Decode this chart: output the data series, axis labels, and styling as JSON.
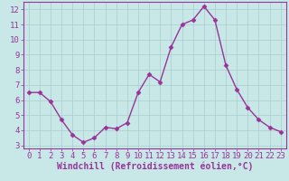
{
  "x": [
    0,
    1,
    2,
    3,
    4,
    5,
    6,
    7,
    8,
    9,
    10,
    11,
    12,
    13,
    14,
    15,
    16,
    17,
    18,
    19,
    20,
    21,
    22,
    23
  ],
  "y": [
    6.5,
    6.5,
    5.9,
    4.7,
    3.7,
    3.2,
    3.5,
    4.2,
    4.1,
    4.5,
    6.5,
    7.7,
    7.2,
    9.5,
    11.0,
    11.3,
    12.2,
    11.3,
    8.3,
    6.7,
    5.5,
    4.7,
    4.2,
    3.9
  ],
  "line_color": "#993399",
  "marker": "D",
  "marker_size": 2.5,
  "bg_color": "#c8e8e8",
  "grid_color": "#aacccc",
  "xlim": [
    -0.5,
    23.5
  ],
  "ylim": [
    2.8,
    12.5
  ],
  "yticks": [
    3,
    4,
    5,
    6,
    7,
    8,
    9,
    10,
    11,
    12
  ],
  "xticks": [
    0,
    1,
    2,
    3,
    4,
    5,
    6,
    7,
    8,
    9,
    10,
    11,
    12,
    13,
    14,
    15,
    16,
    17,
    18,
    19,
    20,
    21,
    22,
    23
  ],
  "xlabel": "Windchill (Refroidissement éolien,°C)",
  "tick_color": "#993399",
  "xlabel_fontsize": 7,
  "tick_fontsize": 6.5,
  "line_width": 1.0,
  "spine_color": "#993399"
}
